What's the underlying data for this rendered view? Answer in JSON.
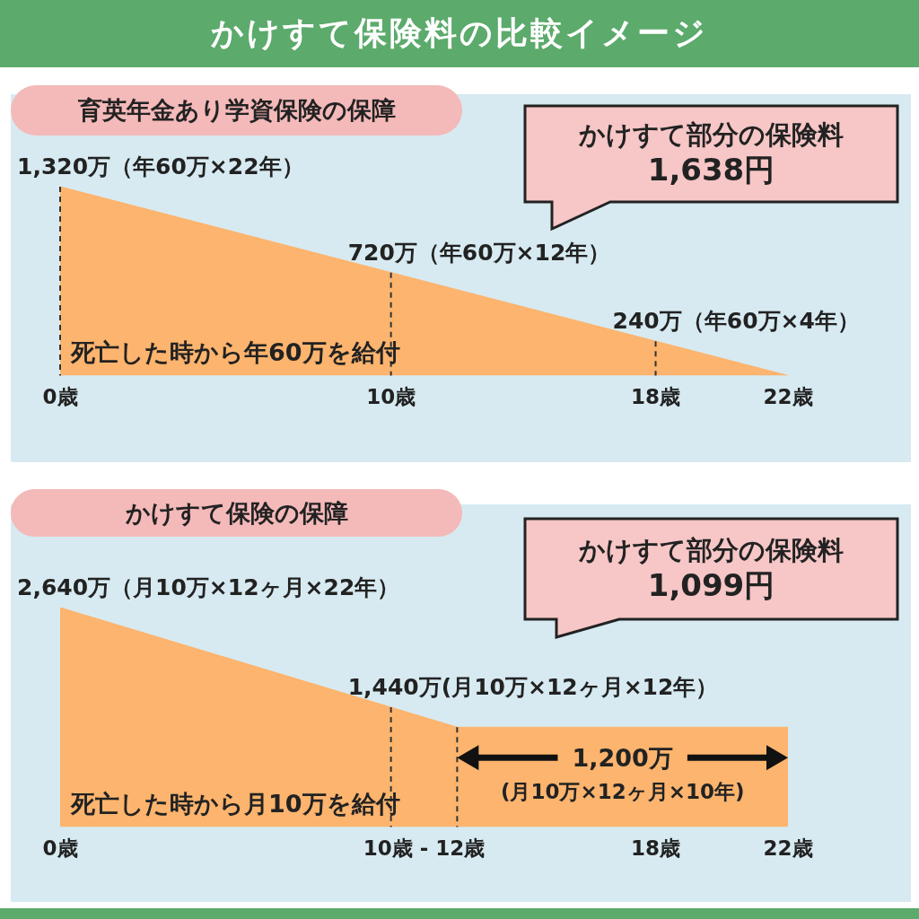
{
  "chart_data": [
    {
      "type": "area",
      "title": "かけすて保険料の比較イメージ",
      "subtitle": "育英年金あり学資保険の保障",
      "x": [
        0,
        10,
        18,
        22
      ],
      "series": [
        {
          "color": "#fcb46e",
          "values": [
            1320,
            720,
            240,
            0
          ],
          "value_labels": [
            "1,320万（年60万×22年）",
            "720万（年60万×12年）",
            "240万（年60万×4年）",
            null
          ]
        }
      ],
      "xlim": [
        0,
        22
      ],
      "xticks": [
        {
          "value": 0,
          "label": "0歳"
        },
        {
          "value": 10,
          "label": "10歳"
        },
        {
          "value": 18,
          "label": "18歳"
        },
        {
          "value": 22,
          "label": "22歳"
        }
      ],
      "tick_labels": "x",
      "marker": "none",
      "legend": false,
      "grid": false,
      "ref_lines": [
        {
          "axis": "x",
          "value": 0,
          "line_style": "dashed",
          "color": "#333333"
        },
        {
          "axis": "x",
          "value": 10,
          "line_style": "dashed",
          "color": "#333333"
        },
        {
          "axis": "x",
          "value": 18,
          "line_style": "dashed",
          "color": "#333333"
        }
      ],
      "annotations": [
        "かけすて部分の保険料\n1,638円",
        "死亡した時から年60万を給付"
      ]
    },
    {
      "type": "area",
      "subtitle": "かけすて保険の保障",
      "x": [
        0,
        10,
        12,
        22
      ],
      "series": [
        {
          "color": "#fcb46e",
          "values": [
            2640,
            1440,
            1200,
            1200
          ],
          "value_labels": [
            "2,640万（月10万×12ヶ月×22年）",
            "1,440万(月10万×12ヶ月×12年）",
            null,
            null
          ]
        }
      ],
      "xlim": [
        0,
        22
      ],
      "xticks": [
        {
          "value": 0,
          "label": "0歳"
        },
        {
          "value": 11,
          "label": "10歳 - 12歳"
        },
        {
          "value": 18,
          "label": "18歳"
        },
        {
          "value": 22,
          "label": "22歳"
        }
      ],
      "tick_labels": "x",
      "marker": "none",
      "legend": false,
      "grid": false,
      "ref_lines": [
        {
          "axis": "x",
          "value": 10,
          "line_style": "dashed",
          "color": "#333333"
        },
        {
          "axis": "x",
          "value": 12,
          "line_style": "dashed",
          "color": "#333333"
        }
      ],
      "annotations": [
        "かけすて部分の保険料\n1,099円",
        {
          "text": "1,200万\n(月10万×12ヶ月×10年)",
          "x": 17,
          "y": 1200
        },
        "死亡した時から月10万を給付"
      ]
    }
  ]
}
